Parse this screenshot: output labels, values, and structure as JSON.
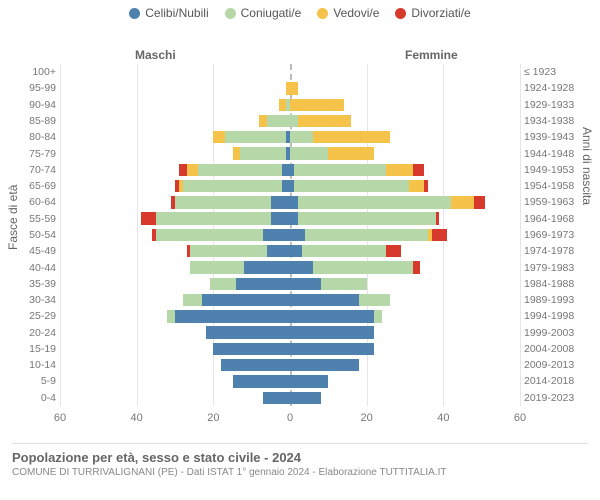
{
  "legend": [
    {
      "label": "Celibi/Nubili",
      "color": "#4f81af"
    },
    {
      "label": "Coniugati/e",
      "color": "#b6d7a8"
    },
    {
      "label": "Vedovi/e",
      "color": "#f6c34a"
    },
    {
      "label": "Divorziati/e",
      "color": "#d73a2c"
    }
  ],
  "headers": {
    "male": "Maschi",
    "female": "Femmine"
  },
  "axis_titles": {
    "left": "Fasce di età",
    "right": "Anni di nascita"
  },
  "xaxis": {
    "max": 60,
    "step": 20,
    "ticks_male": [
      60,
      40,
      20,
      0
    ],
    "ticks_female": [
      20,
      40,
      60
    ]
  },
  "colors": {
    "single": "#4f81af",
    "married": "#b6d7a8",
    "widowed": "#f6c34a",
    "divorced": "#d73a2c",
    "grid": "#e6e6e6",
    "center": "#bcbcbc",
    "bg": "#ffffff"
  },
  "rows": [
    {
      "age": "100+",
      "birth": "≤ 1923",
      "m": [
        0,
        0,
        0,
        0
      ],
      "f": [
        0,
        0,
        0,
        0
      ]
    },
    {
      "age": "95-99",
      "birth": "1924-1928",
      "m": [
        0,
        0,
        1,
        0
      ],
      "f": [
        0,
        0,
        2,
        0
      ]
    },
    {
      "age": "90-94",
      "birth": "1929-1933",
      "m": [
        0,
        1,
        2,
        0
      ],
      "f": [
        0,
        0,
        14,
        0
      ]
    },
    {
      "age": "85-89",
      "birth": "1934-1938",
      "m": [
        0,
        6,
        2,
        0
      ],
      "f": [
        0,
        2,
        14,
        0
      ]
    },
    {
      "age": "80-84",
      "birth": "1939-1943",
      "m": [
        1,
        16,
        3,
        0
      ],
      "f": [
        0,
        6,
        20,
        0
      ]
    },
    {
      "age": "75-79",
      "birth": "1944-1948",
      "m": [
        1,
        12,
        2,
        0
      ],
      "f": [
        0,
        10,
        12,
        0
      ]
    },
    {
      "age": "70-74",
      "birth": "1949-1953",
      "m": [
        2,
        22,
        3,
        2
      ],
      "f": [
        1,
        24,
        7,
        3
      ]
    },
    {
      "age": "65-69",
      "birth": "1954-1958",
      "m": [
        2,
        26,
        1,
        1
      ],
      "f": [
        1,
        30,
        4,
        1
      ]
    },
    {
      "age": "60-64",
      "birth": "1959-1963",
      "m": [
        5,
        25,
        0,
        1
      ],
      "f": [
        2,
        40,
        6,
        3
      ]
    },
    {
      "age": "55-59",
      "birth": "1964-1968",
      "m": [
        5,
        30,
        0,
        4
      ],
      "f": [
        2,
        36,
        0,
        1
      ]
    },
    {
      "age": "50-54",
      "birth": "1969-1973",
      "m": [
        7,
        28,
        0,
        1
      ],
      "f": [
        4,
        32,
        1,
        4
      ]
    },
    {
      "age": "45-49",
      "birth": "1974-1978",
      "m": [
        6,
        20,
        0,
        1
      ],
      "f": [
        3,
        22,
        0,
        4
      ]
    },
    {
      "age": "40-44",
      "birth": "1979-1983",
      "m": [
        12,
        14,
        0,
        0
      ],
      "f": [
        6,
        26,
        0,
        2
      ]
    },
    {
      "age": "35-39",
      "birth": "1984-1988",
      "m": [
        14,
        7,
        0,
        0
      ],
      "f": [
        8,
        12,
        0,
        0
      ]
    },
    {
      "age": "30-34",
      "birth": "1989-1993",
      "m": [
        23,
        5,
        0,
        0
      ],
      "f": [
        18,
        8,
        0,
        0
      ]
    },
    {
      "age": "25-29",
      "birth": "1994-1998",
      "m": [
        30,
        2,
        0,
        0
      ],
      "f": [
        22,
        2,
        0,
        0
      ]
    },
    {
      "age": "20-24",
      "birth": "1999-2003",
      "m": [
        22,
        0,
        0,
        0
      ],
      "f": [
        22,
        0,
        0,
        0
      ]
    },
    {
      "age": "15-19",
      "birth": "2004-2008",
      "m": [
        20,
        0,
        0,
        0
      ],
      "f": [
        22,
        0,
        0,
        0
      ]
    },
    {
      "age": "10-14",
      "birth": "2009-2013",
      "m": [
        18,
        0,
        0,
        0
      ],
      "f": [
        18,
        0,
        0,
        0
      ]
    },
    {
      "age": "5-9",
      "birth": "2014-2018",
      "m": [
        15,
        0,
        0,
        0
      ],
      "f": [
        10,
        0,
        0,
        0
      ]
    },
    {
      "age": "0-4",
      "birth": "2019-2023",
      "m": [
        7,
        0,
        0,
        0
      ],
      "f": [
        8,
        0,
        0,
        0
      ]
    }
  ],
  "footer": {
    "title": "Popolazione per età, sesso e stato civile - 2024",
    "sub": "COMUNE DI TURRIVALIGNANI (PE) - Dati ISTAT 1° gennaio 2024 - Elaborazione TUTTITALIA.IT"
  },
  "styling": {
    "title_fontsize": 13,
    "sub_fontsize": 10,
    "tick_fontsize": 11,
    "label_fontsize": 10.5,
    "legend_fontsize": 12,
    "bar_height_pct": 76
  }
}
